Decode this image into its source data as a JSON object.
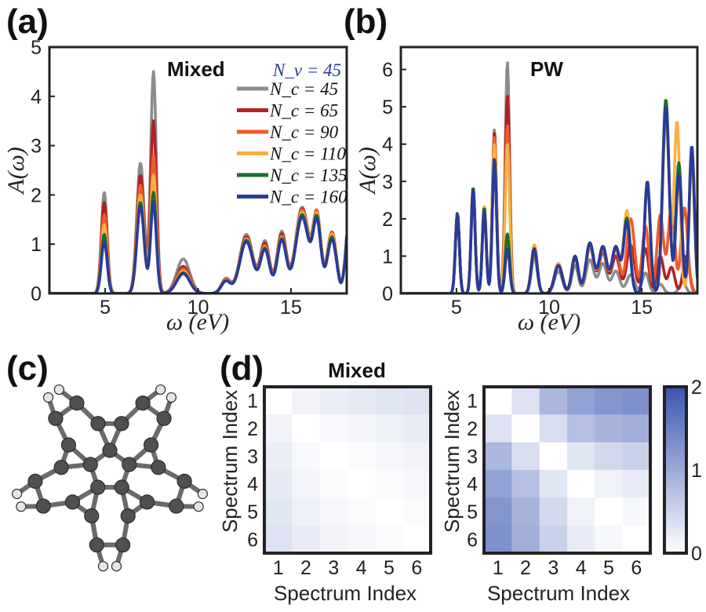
{
  "panel_letters": {
    "a": "(a)",
    "b": "(b)",
    "c": "(c)",
    "d": "(d)"
  },
  "chart_data": [
    {
      "type": "line",
      "panel": "(a)",
      "title": "Mixed",
      "xlabel": "ω (eV)",
      "ylabel": "A(ω)",
      "xlim": [
        2,
        18
      ],
      "ylim": [
        0,
        5
      ],
      "xticks": [
        5,
        10,
        15
      ],
      "yticks": [
        0,
        1,
        2,
        3,
        4,
        5
      ],
      "legend_header": "N_v = 45",
      "legend_position": "top-right",
      "series": [
        {
          "name": "N_c = 45",
          "color": "#8c8c8c",
          "peaks": [
            [
              4.95,
              2.05,
              0.22
            ],
            [
              6.9,
              2.65,
              0.28
            ],
            [
              7.6,
              4.5,
              0.22
            ],
            [
              9.2,
              0.7,
              0.5
            ],
            [
              11.5,
              0.3,
              0.35
            ],
            [
              12.6,
              1.2,
              0.5
            ],
            [
              13.6,
              1.05,
              0.35
            ],
            [
              14.5,
              1.25,
              0.35
            ],
            [
              15.6,
              1.75,
              0.5
            ],
            [
              16.4,
              1.5,
              0.3
            ],
            [
              17.2,
              1.2,
              0.35
            ]
          ],
          "rise": [
            17.6,
            1.9
          ]
        },
        {
          "name": "N_c = 65",
          "color": "#b22222",
          "peaks": [
            [
              4.95,
              1.85,
              0.22
            ],
            [
              6.9,
              2.4,
              0.28
            ],
            [
              7.6,
              3.5,
              0.22
            ],
            [
              9.2,
              0.55,
              0.5
            ],
            [
              11.5,
              0.28,
              0.35
            ],
            [
              12.6,
              1.15,
              0.5
            ],
            [
              13.6,
              1.0,
              0.35
            ],
            [
              14.5,
              1.2,
              0.35
            ],
            [
              15.6,
              1.72,
              0.5
            ],
            [
              16.4,
              1.55,
              0.3
            ],
            [
              17.2,
              1.25,
              0.35
            ]
          ],
          "rise": [
            17.6,
            1.95
          ]
        },
        {
          "name": "N_c = 90",
          "color": "#f05a28",
          "peaks": [
            [
              4.95,
              1.6,
              0.22
            ],
            [
              6.9,
              2.2,
              0.28
            ],
            [
              7.6,
              2.8,
              0.22
            ],
            [
              9.2,
              0.5,
              0.5
            ],
            [
              11.5,
              0.27,
              0.35
            ],
            [
              12.6,
              1.12,
              0.5
            ],
            [
              13.6,
              0.95,
              0.35
            ],
            [
              14.5,
              1.15,
              0.35
            ],
            [
              15.6,
              1.7,
              0.5
            ],
            [
              16.4,
              1.55,
              0.3
            ],
            [
              17.2,
              1.25,
              0.35
            ]
          ],
          "rise": [
            17.6,
            1.95
          ]
        },
        {
          "name": "N_c = 110",
          "color": "#f7b043",
          "peaks": [
            [
              4.95,
              1.4,
              0.22
            ],
            [
              6.9,
              2.0,
              0.28
            ],
            [
              7.6,
              2.4,
              0.22
            ],
            [
              9.2,
              0.45,
              0.5
            ],
            [
              11.5,
              0.26,
              0.35
            ],
            [
              12.6,
              1.1,
              0.5
            ],
            [
              13.6,
              0.92,
              0.35
            ],
            [
              14.5,
              1.12,
              0.35
            ],
            [
              15.6,
              1.65,
              0.5
            ],
            [
              16.4,
              1.5,
              0.3
            ],
            [
              17.2,
              1.2,
              0.35
            ]
          ],
          "rise": [
            17.6,
            1.95
          ]
        },
        {
          "name": "N_c = 135",
          "color": "#1a6e2e",
          "peaks": [
            [
              4.95,
              1.2,
              0.22
            ],
            [
              6.9,
              1.85,
              0.28
            ],
            [
              7.6,
              2.05,
              0.22
            ],
            [
              9.2,
              0.42,
              0.5
            ],
            [
              11.5,
              0.25,
              0.35
            ],
            [
              12.6,
              1.08,
              0.5
            ],
            [
              13.6,
              0.9,
              0.35
            ],
            [
              14.5,
              1.1,
              0.35
            ],
            [
              15.6,
              1.6,
              0.5
            ],
            [
              16.4,
              1.45,
              0.3
            ],
            [
              17.2,
              1.15,
              0.35
            ]
          ],
          "rise": [
            17.6,
            1.95
          ]
        },
        {
          "name": "N_c = 160",
          "color": "#2a3a9c",
          "peaks": [
            [
              4.95,
              1.05,
              0.22
            ],
            [
              6.9,
              1.78,
              0.28
            ],
            [
              7.6,
              1.85,
              0.22
            ],
            [
              9.2,
              0.4,
              0.5
            ],
            [
              11.5,
              0.25,
              0.35
            ],
            [
              12.6,
              1.05,
              0.5
            ],
            [
              13.6,
              0.88,
              0.35
            ],
            [
              14.5,
              1.08,
              0.35
            ],
            [
              15.6,
              1.55,
              0.5
            ],
            [
              16.4,
              1.4,
              0.3
            ],
            [
              17.2,
              1.1,
              0.35
            ]
          ],
          "rise": [
            17.6,
            1.95
          ]
        }
      ]
    },
    {
      "type": "line",
      "panel": "(b)",
      "title": "PW",
      "xlabel": "ω (eV)",
      "ylabel": "A(ω)",
      "xlim": [
        2,
        18
      ],
      "ylim": [
        0,
        6.6
      ],
      "xticks": [
        5,
        10,
        15
      ],
      "yticks": [
        0,
        1,
        2,
        3,
        4,
        5,
        6
      ],
      "series": [
        {
          "name": "N_c = 45",
          "color": "#8c8c8c",
          "peaks": [
            [
              5.05,
              2.1,
              0.15
            ],
            [
              5.9,
              2.7,
              0.15
            ],
            [
              6.5,
              2.3,
              0.15
            ],
            [
              7.05,
              4.4,
              0.16
            ],
            [
              7.75,
              6.2,
              0.17
            ],
            [
              9.2,
              1.0,
              0.22
            ],
            [
              10.5,
              0.6,
              0.3
            ],
            [
              11.4,
              0.75,
              0.25
            ],
            [
              12.2,
              0.9,
              0.3
            ],
            [
              12.9,
              0.8,
              0.3
            ],
            [
              13.6,
              0.6,
              0.3
            ],
            [
              14.4,
              0.5,
              0.3
            ],
            [
              15.2,
              0.55,
              0.25
            ],
            [
              16.0,
              0.25,
              0.25
            ],
            [
              17.2,
              0.3,
              0.25
            ]
          ]
        },
        {
          "name": "N_c = 65",
          "color": "#b22222",
          "peaks": [
            [
              5.05,
              2.15,
              0.15
            ],
            [
              5.9,
              2.8,
              0.15
            ],
            [
              6.5,
              2.35,
              0.15
            ],
            [
              7.05,
              4.3,
              0.16
            ],
            [
              7.75,
              5.3,
              0.17
            ],
            [
              9.2,
              1.3,
              0.22
            ],
            [
              10.5,
              0.8,
              0.3
            ],
            [
              11.4,
              0.95,
              0.25
            ],
            [
              12.2,
              1.25,
              0.3
            ],
            [
              12.9,
              1.1,
              0.3
            ],
            [
              13.6,
              1.0,
              0.3
            ],
            [
              14.4,
              1.3,
              0.3
            ],
            [
              15.2,
              1.2,
              0.25
            ],
            [
              16.0,
              1.0,
              0.25
            ],
            [
              16.6,
              0.7,
              0.25
            ],
            [
              17.4,
              1.0,
              0.25
            ]
          ]
        },
        {
          "name": "N_c = 90",
          "color": "#f05a28",
          "peaks": [
            [
              5.05,
              2.15,
              0.15
            ],
            [
              5.9,
              2.85,
              0.15
            ],
            [
              6.5,
              2.35,
              0.15
            ],
            [
              7.05,
              4.2,
              0.16
            ],
            [
              7.75,
              4.5,
              0.17
            ],
            [
              9.2,
              1.3,
              0.22
            ],
            [
              10.5,
              0.8,
              0.3
            ],
            [
              11.4,
              1.0,
              0.25
            ],
            [
              12.2,
              1.3,
              0.3
            ],
            [
              12.9,
              1.2,
              0.3
            ],
            [
              13.6,
              1.2,
              0.3
            ],
            [
              14.4,
              2.0,
              0.3
            ],
            [
              15.2,
              1.8,
              0.25
            ],
            [
              16.0,
              2.1,
              0.25
            ],
            [
              16.6,
              2.3,
              0.25
            ],
            [
              17.3,
              2.3,
              0.25
            ]
          ]
        },
        {
          "name": "N_c = 110",
          "color": "#f7b043",
          "peaks": [
            [
              5.05,
              2.15,
              0.15
            ],
            [
              5.9,
              2.85,
              0.15
            ],
            [
              6.5,
              2.35,
              0.15
            ],
            [
              7.05,
              4.0,
              0.16
            ],
            [
              7.75,
              4.0,
              0.17
            ],
            [
              9.2,
              1.3,
              0.22
            ],
            [
              10.5,
              0.8,
              0.3
            ],
            [
              11.4,
              1.0,
              0.25
            ],
            [
              12.2,
              1.3,
              0.3
            ],
            [
              12.9,
              1.2,
              0.3
            ],
            [
              13.6,
              1.25,
              0.3
            ],
            [
              14.2,
              2.2,
              0.25
            ],
            [
              15.3,
              2.9,
              0.22
            ],
            [
              16.3,
              4.7,
              0.25
            ],
            [
              16.9,
              4.6,
              0.22
            ],
            [
              17.7,
              3.5,
              0.2
            ]
          ]
        },
        {
          "name": "N_c = 135",
          "color": "#1a6e2e",
          "peaks": [
            [
              5.05,
              2.15,
              0.15
            ],
            [
              5.9,
              2.85,
              0.15
            ],
            [
              6.5,
              2.3,
              0.15
            ],
            [
              7.05,
              3.6,
              0.16
            ],
            [
              7.75,
              1.6,
              0.17
            ],
            [
              9.2,
              1.2,
              0.22
            ],
            [
              10.5,
              0.75,
              0.3
            ],
            [
              11.4,
              1.0,
              0.25
            ],
            [
              12.2,
              1.35,
              0.3
            ],
            [
              12.9,
              1.25,
              0.3
            ],
            [
              13.6,
              1.25,
              0.3
            ],
            [
              14.2,
              2.0,
              0.25
            ],
            [
              15.3,
              3.0,
              0.22
            ],
            [
              16.3,
              5.2,
              0.25
            ],
            [
              17.0,
              3.5,
              0.22
            ],
            [
              17.7,
              3.8,
              0.2
            ]
          ]
        },
        {
          "name": "N_c = 160",
          "color": "#2a3a9c",
          "peaks": [
            [
              5.05,
              2.15,
              0.15
            ],
            [
              5.9,
              2.8,
              0.15
            ],
            [
              6.5,
              2.2,
              0.15
            ],
            [
              7.05,
              3.6,
              0.16
            ],
            [
              7.75,
              1.2,
              0.17
            ],
            [
              9.2,
              1.2,
              0.22
            ],
            [
              10.5,
              0.75,
              0.3
            ],
            [
              11.4,
              1.0,
              0.25
            ],
            [
              12.2,
              1.35,
              0.3
            ],
            [
              12.9,
              1.25,
              0.3
            ],
            [
              13.6,
              1.25,
              0.3
            ],
            [
              14.2,
              1.9,
              0.25
            ],
            [
              15.3,
              3.0,
              0.22
            ],
            [
              16.3,
              5.0,
              0.25
            ],
            [
              17.0,
              3.2,
              0.22
            ],
            [
              17.7,
              3.95,
              0.2
            ]
          ]
        }
      ]
    },
    {
      "type": "heatmap",
      "panel": "(d)",
      "title": "Mixed",
      "xlabel": "Spectrum Index",
      "ylabel": "Spectrum Index",
      "xticks": [
        "1",
        "2",
        "3",
        "4",
        "5",
        "6"
      ],
      "yticks": [
        "1",
        "2",
        "3",
        "4",
        "5",
        "6"
      ],
      "zlim": [
        0,
        2
      ],
      "values": [
        [
          0.0,
          0.14,
          0.2,
          0.25,
          0.3,
          0.34
        ],
        [
          0.14,
          0.0,
          0.07,
          0.12,
          0.17,
          0.22
        ],
        [
          0.2,
          0.07,
          0.0,
          0.05,
          0.1,
          0.14
        ],
        [
          0.25,
          0.12,
          0.05,
          0.0,
          0.05,
          0.09
        ],
        [
          0.3,
          0.17,
          0.1,
          0.05,
          0.0,
          0.05
        ],
        [
          0.34,
          0.22,
          0.14,
          0.09,
          0.05,
          0.0
        ]
      ]
    },
    {
      "type": "heatmap",
      "panel": "(d)",
      "title": "PW",
      "xlabel": "Spectrum Index",
      "ylabel": "Spectrum Index",
      "xticks": [
        "1",
        "2",
        "3",
        "4",
        "5",
        "6"
      ],
      "yticks": [
        "1",
        "2",
        "3",
        "4",
        "5",
        "6"
      ],
      "zlim": [
        0,
        2
      ],
      "colorbar_ticks": [
        "0",
        "1",
        "2"
      ],
      "values": [
        [
          0.0,
          0.35,
          0.85,
          1.1,
          1.25,
          1.3
        ],
        [
          0.35,
          0.0,
          0.4,
          0.75,
          0.9,
          0.95
        ],
        [
          0.85,
          0.4,
          0.0,
          0.3,
          0.45,
          0.55
        ],
        [
          1.1,
          0.75,
          0.3,
          0.0,
          0.15,
          0.22
        ],
        [
          1.25,
          0.9,
          0.45,
          0.15,
          0.0,
          0.08
        ],
        [
          1.3,
          0.95,
          0.55,
          0.22,
          0.08,
          0.0
        ]
      ]
    }
  ],
  "colors": {
    "heat_low": "#ffffff",
    "heat_high": "#3a55b0",
    "axis": "#222222",
    "legend_header": "#2a3a9c"
  }
}
